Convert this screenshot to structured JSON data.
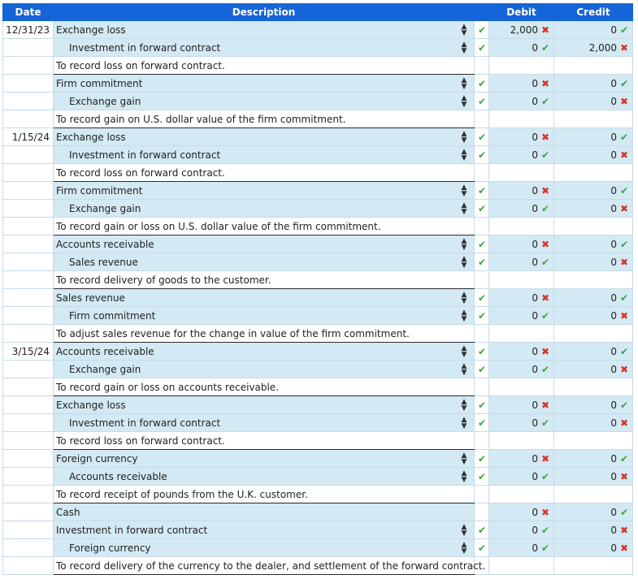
{
  "headers": {
    "date": "Date",
    "description": "Description",
    "debit": "Debit",
    "credit": "Credit"
  },
  "rows": [
    {
      "kind": "entry",
      "date": "12/31/23",
      "account": "Exchange loss",
      "indent": false,
      "check": "ok",
      "debit": "2,000",
      "debit_status": "bad",
      "credit": "0",
      "credit_status": "ok"
    },
    {
      "kind": "entry",
      "date": "",
      "account": "Investment in forward contract",
      "indent": true,
      "check": "ok",
      "debit": "0",
      "debit_status": "ok",
      "credit": "2,000",
      "credit_status": "bad"
    },
    {
      "kind": "memo",
      "date": "",
      "text": "To record loss on forward contract."
    },
    {
      "kind": "entry",
      "date": "",
      "account": "Firm commitment",
      "indent": false,
      "check": "ok",
      "debit": "0",
      "debit_status": "bad",
      "credit": "0",
      "credit_status": "ok"
    },
    {
      "kind": "entry",
      "date": "",
      "account": "Exchange gain",
      "indent": true,
      "check": "ok",
      "debit": "0",
      "debit_status": "ok",
      "credit": "0",
      "credit_status": "bad"
    },
    {
      "kind": "memo",
      "date": "",
      "text": "To record gain on U.S. dollar value of the firm commitment."
    },
    {
      "kind": "entry",
      "date": "1/15/24",
      "account": "Exchange loss",
      "indent": false,
      "check": "ok",
      "debit": "0",
      "debit_status": "bad",
      "credit": "0",
      "credit_status": "ok"
    },
    {
      "kind": "entry",
      "date": "",
      "account": "Investment in forward contract",
      "indent": true,
      "check": "ok",
      "debit": "0",
      "debit_status": "ok",
      "credit": "0",
      "credit_status": "bad"
    },
    {
      "kind": "memo",
      "date": "",
      "text": "To record loss on forward contract."
    },
    {
      "kind": "entry",
      "date": "",
      "account": "Firm commitment",
      "indent": false,
      "check": "ok",
      "debit": "0",
      "debit_status": "bad",
      "credit": "0",
      "credit_status": "ok"
    },
    {
      "kind": "entry",
      "date": "",
      "account": "Exchange gain",
      "indent": true,
      "check": "ok",
      "debit": "0",
      "debit_status": "ok",
      "credit": "0",
      "credit_status": "bad"
    },
    {
      "kind": "memo",
      "date": "",
      "text": "To record gain or loss on U.S. dollar value of the firm commitment."
    },
    {
      "kind": "entry",
      "date": "",
      "account": "Accounts receivable",
      "indent": false,
      "check": "ok",
      "debit": "0",
      "debit_status": "bad",
      "credit": "0",
      "credit_status": "ok"
    },
    {
      "kind": "entry",
      "date": "",
      "account": "Sales revenue",
      "indent": true,
      "check": "ok",
      "debit": "0",
      "debit_status": "ok",
      "credit": "0",
      "credit_status": "bad"
    },
    {
      "kind": "memo",
      "date": "",
      "text": "To record delivery of goods to the customer."
    },
    {
      "kind": "entry",
      "date": "",
      "account": "Sales revenue",
      "indent": false,
      "check": "ok",
      "debit": "0",
      "debit_status": "bad",
      "credit": "0",
      "credit_status": "ok"
    },
    {
      "kind": "entry",
      "date": "",
      "account": "Firm commitment",
      "indent": true,
      "check": "ok",
      "debit": "0",
      "debit_status": "ok",
      "credit": "0",
      "credit_status": "bad"
    },
    {
      "kind": "memo",
      "date": "",
      "text": "To adjust sales revenue for the change in value of the firm commitment."
    },
    {
      "kind": "entry",
      "date": "3/15/24",
      "account": "Accounts receivable",
      "indent": false,
      "check": "ok",
      "debit": "0",
      "debit_status": "bad",
      "credit": "0",
      "credit_status": "ok"
    },
    {
      "kind": "entry",
      "date": "",
      "account": "Exchange gain",
      "indent": true,
      "check": "ok",
      "debit": "0",
      "debit_status": "ok",
      "credit": "0",
      "credit_status": "bad"
    },
    {
      "kind": "memo",
      "date": "",
      "text": "To record gain or loss on accounts receivable."
    },
    {
      "kind": "entry",
      "date": "",
      "account": "Exchange loss",
      "indent": false,
      "check": "ok",
      "debit": "0",
      "debit_status": "bad",
      "credit": "0",
      "credit_status": "ok"
    },
    {
      "kind": "entry",
      "date": "",
      "account": "Investment in forward contract",
      "indent": true,
      "check": "ok",
      "debit": "0",
      "debit_status": "ok",
      "credit": "0",
      "credit_status": "bad"
    },
    {
      "kind": "memo",
      "date": "",
      "text": "To record loss on forward contract."
    },
    {
      "kind": "entry",
      "date": "",
      "account": "Foreign currency",
      "indent": false,
      "check": "ok",
      "debit": "0",
      "debit_status": "bad",
      "credit": "0",
      "credit_status": "ok"
    },
    {
      "kind": "entry",
      "date": "",
      "account": "Accounts receivable",
      "indent": true,
      "check": "ok",
      "debit": "0",
      "debit_status": "ok",
      "credit": "0",
      "credit_status": "bad"
    },
    {
      "kind": "memo",
      "date": "",
      "text": "To record receipt of pounds from the U.K. customer."
    },
    {
      "kind": "entry",
      "date": "",
      "account": "Cash",
      "indent": false,
      "select": false,
      "check": "",
      "debit": "0",
      "debit_status": "bad",
      "credit": "0",
      "credit_status": "ok"
    },
    {
      "kind": "entry",
      "date": "",
      "account": "Investment in forward contract",
      "indent": false,
      "check": "ok",
      "debit": "0",
      "debit_status": "ok",
      "credit": "0",
      "credit_status": "bad"
    },
    {
      "kind": "entry",
      "date": "",
      "account": "Foreign currency",
      "indent": true,
      "check": "ok",
      "debit": "0",
      "debit_status": "ok",
      "credit": "0",
      "credit_status": "bad"
    },
    {
      "kind": "memo",
      "date": "",
      "text": "To record delivery of the currency to the dealer, and settlement of the forward contract."
    }
  ],
  "colors": {
    "header_bg": "#1565d8",
    "entry_bg": "#d3e9f3",
    "correct": "#3ba53b",
    "incorrect": "#d9342b"
  }
}
